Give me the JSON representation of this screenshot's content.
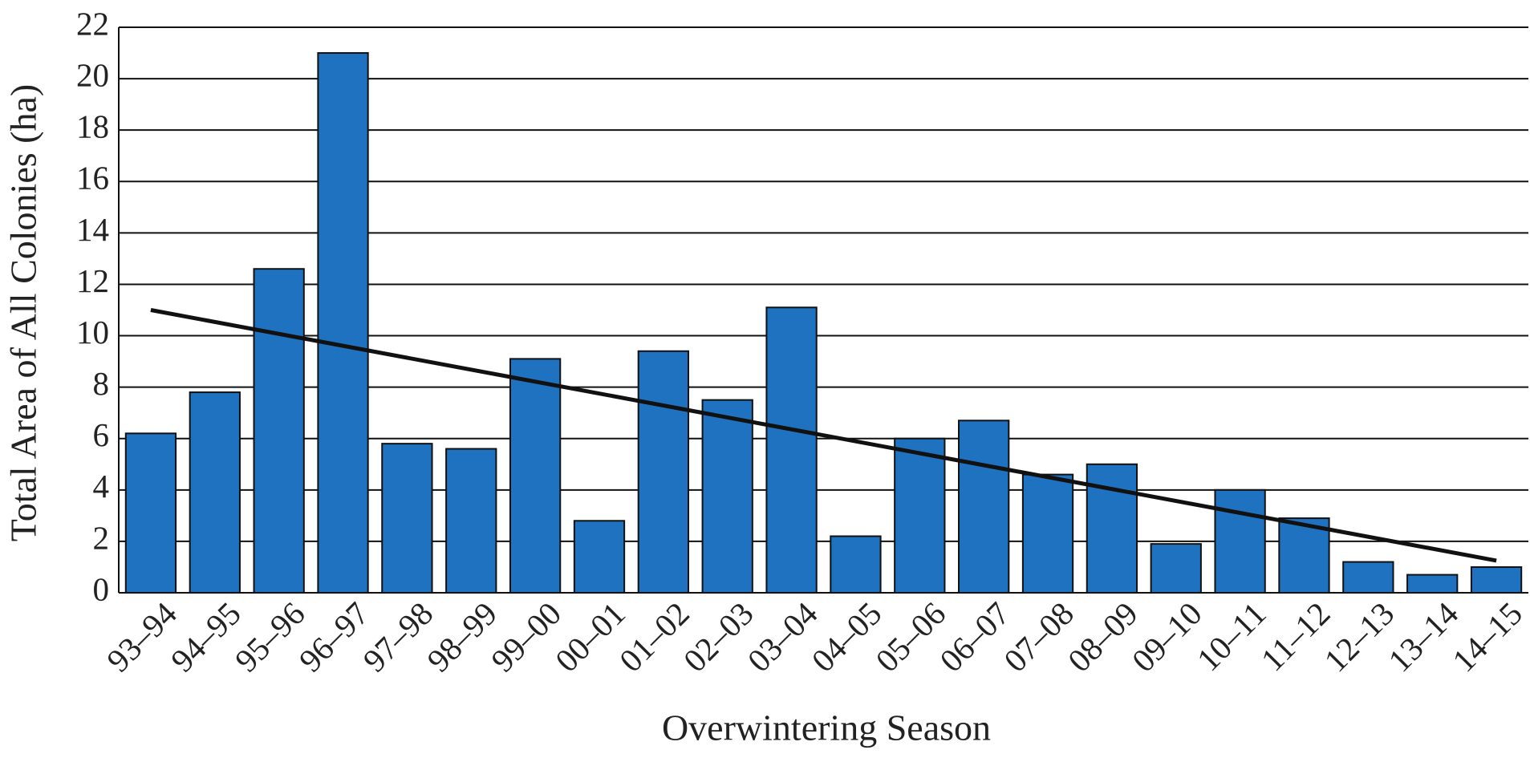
{
  "chart_data": {
    "type": "bar",
    "x_label": "Overwintering Season",
    "y_label": "Total Area of All Colonies (ha)",
    "categories": [
      "93–94",
      "94–95",
      "95–96",
      "96–97",
      "97–98",
      "98–99",
      "99–00",
      "00–01",
      "01–02",
      "02–03",
      "03–04",
      "04–05",
      "05–06",
      "06–07",
      "07–08",
      "08–09",
      "09–10",
      "10–11",
      "11–12",
      "12–13",
      "13–14",
      "14–15"
    ],
    "values": [
      6.2,
      7.8,
      12.6,
      21.0,
      5.8,
      5.6,
      9.1,
      2.8,
      9.4,
      7.5,
      11.1,
      2.2,
      6.0,
      6.7,
      4.6,
      5.0,
      1.9,
      4.0,
      2.9,
      1.2,
      0.7,
      1.0
    ],
    "color": "#1f72c0",
    "trendline": {
      "start": 11.0,
      "end": 1.25,
      "color": "#111111"
    },
    "ylim": [
      0,
      22
    ],
    "yticks": [
      0,
      2,
      4,
      6,
      8,
      10,
      12,
      14,
      16,
      18,
      20,
      22
    ],
    "grid": true
  }
}
